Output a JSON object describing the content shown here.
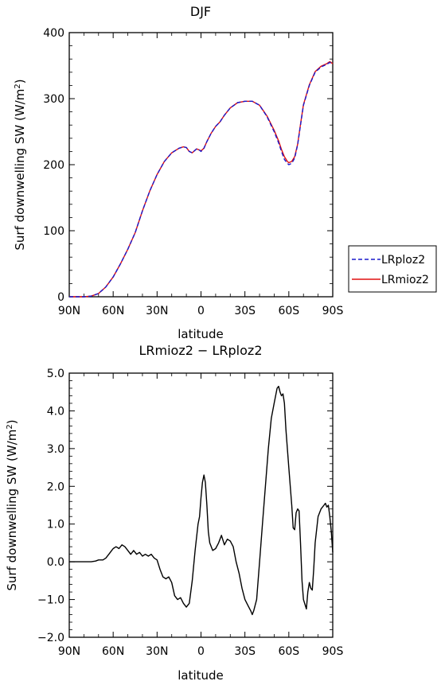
{
  "chart_data": [
    {
      "type": "line",
      "title": "DJF",
      "xlabel": "latitude",
      "ylabel": "Surf downwelling SW",
      "yunit_base": "(W/m",
      "yunit_exp": "2",
      "yunit_close": ")",
      "xlim": [
        90,
        -90
      ],
      "ylim": [
        0,
        400
      ],
      "xticks": [
        90,
        60,
        30,
        0,
        -30,
        -60,
        -90
      ],
      "xtick_labels": [
        "90N",
        "60N",
        "30N",
        "0",
        "30S",
        "60S",
        "90S"
      ],
      "yticks": [
        0,
        100,
        200,
        300,
        400
      ],
      "ytick_labels": [
        "0",
        "100",
        "200",
        "300",
        "400"
      ],
      "legend_position": "right",
      "grid": false,
      "series": [
        {
          "name": "LRploz2",
          "color": "#1a1acc",
          "dash": "dashed",
          "x": [
            90,
            80,
            75,
            70,
            65,
            60,
            55,
            50,
            45,
            40,
            35,
            30,
            25,
            20,
            15,
            12,
            10,
            8,
            6,
            5,
            3,
            1,
            0,
            -2,
            -4,
            -7,
            -10,
            -13,
            -16,
            -20,
            -25,
            -30,
            -35,
            -40,
            -45,
            -50,
            -53,
            -55,
            -57,
            -59,
            -60,
            -62,
            -64,
            -66,
            -68,
            -70,
            -74,
            -78,
            -82,
            -86,
            -88,
            -90
          ],
          "values": [
            0,
            0,
            1,
            5,
            15,
            30,
            50,
            72,
            97,
            130,
            160,
            185,
            205,
            218,
            225,
            227,
            226,
            220,
            218,
            220,
            224,
            222,
            220,
            225,
            235,
            248,
            258,
            265,
            275,
            286,
            294,
            296,
            296,
            290,
            273,
            250,
            233,
            220,
            208,
            202,
            200,
            202,
            210,
            230,
            260,
            290,
            320,
            340,
            348,
            352,
            355,
            352
          ]
        },
        {
          "name": "LRmioz2",
          "color": "#e01010",
          "dash": "solid",
          "x": [
            90,
            80,
            75,
            70,
            65,
            60,
            55,
            50,
            45,
            40,
            35,
            30,
            25,
            20,
            15,
            12,
            10,
            8,
            6,
            5,
            3,
            1,
            0,
            -2,
            -4,
            -7,
            -10,
            -13,
            -16,
            -20,
            -25,
            -30,
            -35,
            -40,
            -45,
            -50,
            -53,
            -55,
            -57,
            -59,
            -60,
            -62,
            -64,
            -66,
            -68,
            -70,
            -74,
            -78,
            -82,
            -86,
            -88,
            -90
          ],
          "values": [
            0,
            0,
            1,
            5,
            15,
            30,
            50,
            72,
            97,
            130,
            160,
            185,
            205,
            218,
            225,
            227,
            226,
            220,
            218,
            220,
            224,
            222,
            221,
            225,
            235,
            248,
            258,
            265,
            275,
            286,
            294,
            296,
            296,
            290,
            274,
            252,
            236,
            223,
            212,
            205,
            203,
            205,
            212,
            231,
            261,
            291,
            321,
            341,
            349,
            353,
            356,
            353
          ]
        }
      ],
      "legend": [
        "LRploz2",
        "LRmioz2"
      ]
    },
    {
      "type": "line",
      "title": "LRmioz2 − LRploz2",
      "xlabel": "latitude",
      "ylabel": "Surf downwelling SW",
      "yunit_base": "(W/m",
      "yunit_exp": "2",
      "yunit_close": ")",
      "xlim": [
        90,
        -90
      ],
      "ylim": [
        -2,
        5
      ],
      "xticks": [
        90,
        60,
        30,
        0,
        -30,
        -60,
        -90
      ],
      "xtick_labels": [
        "90N",
        "60N",
        "30N",
        "0",
        "30S",
        "60S",
        "90S"
      ],
      "yticks": [
        -2,
        -1,
        0,
        1,
        2,
        3,
        4,
        5
      ],
      "ytick_labels": [
        "−2.0",
        "−1.0",
        "0.0",
        "1.0",
        "2.0",
        "3.0",
        "4.0",
        "5.0"
      ],
      "grid": false,
      "series": [
        {
          "color": "#000000",
          "dash": "solid",
          "x": [
            90,
            80,
            75,
            72,
            70,
            67,
            65,
            63,
            61,
            60,
            58,
            56,
            54,
            52,
            50,
            48,
            46,
            44,
            42,
            40,
            38,
            36,
            34,
            32,
            30,
            28,
            26,
            24,
            22,
            20,
            18,
            16,
            14,
            12,
            10,
            8,
            6,
            4,
            2,
            1,
            0,
            -1,
            -2,
            -3,
            -4,
            -5,
            -6,
            -8,
            -10,
            -12,
            -14,
            -16,
            -18,
            -20,
            -22,
            -24,
            -26,
            -28,
            -30,
            -32,
            -34,
            -35,
            -36,
            -38,
            -40,
            -42,
            -44,
            -46,
            -48,
            -50,
            -52,
            -53,
            -54,
            -55,
            -56,
            -57,
            -58,
            -60,
            -62,
            -63,
            -64,
            -65,
            -66,
            -67,
            -68,
            -69,
            -70,
            -72,
            -73,
            -74,
            -75,
            -76,
            -77,
            -78,
            -80,
            -82,
            -84,
            -85,
            -86,
            -87,
            -88,
            -89,
            -90
          ],
          "values": [
            0,
            0,
            0,
            0.02,
            0.05,
            0.05,
            0.1,
            0.2,
            0.3,
            0.35,
            0.4,
            0.35,
            0.45,
            0.4,
            0.3,
            0.2,
            0.3,
            0.2,
            0.25,
            0.15,
            0.2,
            0.15,
            0.2,
            0.1,
            0.05,
            -0.2,
            -0.4,
            -0.45,
            -0.4,
            -0.55,
            -0.9,
            -1.0,
            -0.95,
            -1.1,
            -1.2,
            -1.1,
            -0.5,
            0.3,
            1.0,
            1.2,
            1.7,
            2.1,
            2.3,
            2.1,
            1.5,
            0.8,
            0.5,
            0.3,
            0.35,
            0.5,
            0.7,
            0.45,
            0.6,
            0.55,
            0.4,
            0.0,
            -0.3,
            -0.7,
            -1.0,
            -1.15,
            -1.3,
            -1.4,
            -1.3,
            -1.0,
            0.0,
            1.0,
            2.0,
            3.0,
            3.8,
            4.2,
            4.6,
            4.65,
            4.5,
            4.4,
            4.45,
            4.2,
            3.5,
            2.5,
            1.5,
            0.9,
            0.85,
            1.3,
            1.4,
            1.35,
            0.5,
            -0.5,
            -1.0,
            -1.25,
            -0.8,
            -0.55,
            -0.7,
            -0.75,
            -0.2,
            0.5,
            1.2,
            1.4,
            1.5,
            1.55,
            1.45,
            1.5,
            1.2,
            0.8,
            0.25
          ]
        }
      ]
    }
  ]
}
